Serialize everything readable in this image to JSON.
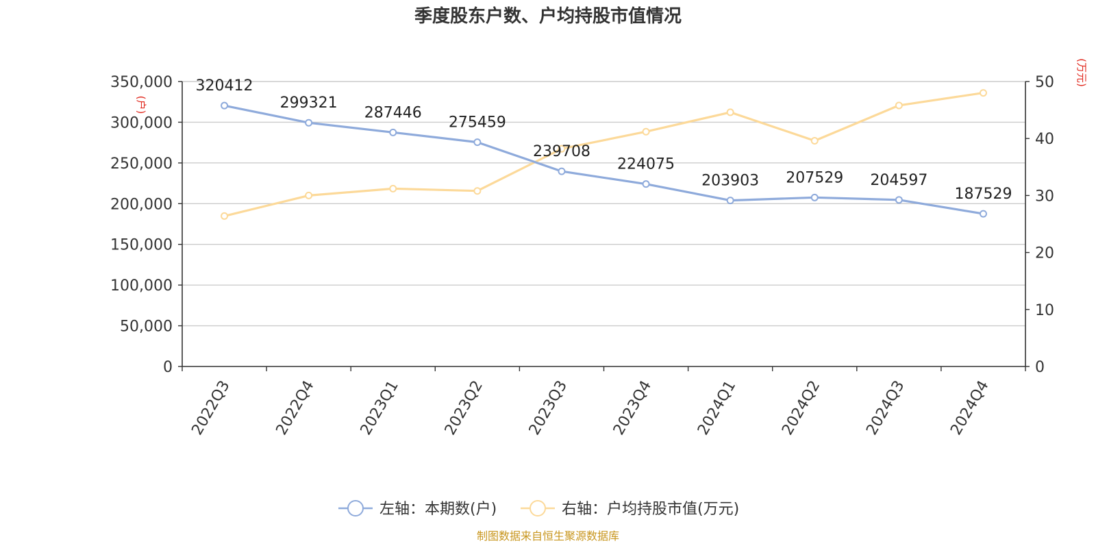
{
  "chart_data": {
    "type": "line",
    "title": "季度股东户数、户均持股市值情况",
    "categories": [
      "2022Q3",
      "2022Q4",
      "2023Q1",
      "2023Q2",
      "2023Q3",
      "2023Q4",
      "2024Q1",
      "2024Q2",
      "2024Q3",
      "2024Q4"
    ],
    "left_axis": {
      "unit_label": "(户)",
      "ylim": [
        0,
        350000
      ],
      "ticks": [
        "0",
        "50,000",
        "100,000",
        "150,000",
        "200,000",
        "250,000",
        "300,000",
        "350,000"
      ]
    },
    "right_axis": {
      "unit_label": "(万元)",
      "ylim": [
        0,
        50
      ],
      "ticks": [
        "0",
        "10",
        "20",
        "30",
        "40",
        "50"
      ]
    },
    "series": [
      {
        "name": "左轴：本期数(户)",
        "axis": "left",
        "color": "#8eaadb",
        "values": [
          320412,
          299321,
          287446,
          275459,
          239708,
          224075,
          203903,
          207529,
          204597,
          187529
        ],
        "labels": [
          "320412",
          "299321",
          "287446",
          "275459",
          "239708",
          "224075",
          "203903",
          "207529",
          "204597",
          "187529"
        ]
      },
      {
        "name": "右轴：户均持股市值(万元)",
        "axis": "right",
        "color": "#fcd999",
        "values": [
          26.4,
          30.0,
          31.2,
          30.8,
          38.2,
          41.2,
          44.6,
          39.6,
          45.8,
          48.0
        ]
      }
    ],
    "grid": true,
    "legend_position": "bottom-center"
  },
  "source_text": "制图数据来自恒生聚源数据库"
}
